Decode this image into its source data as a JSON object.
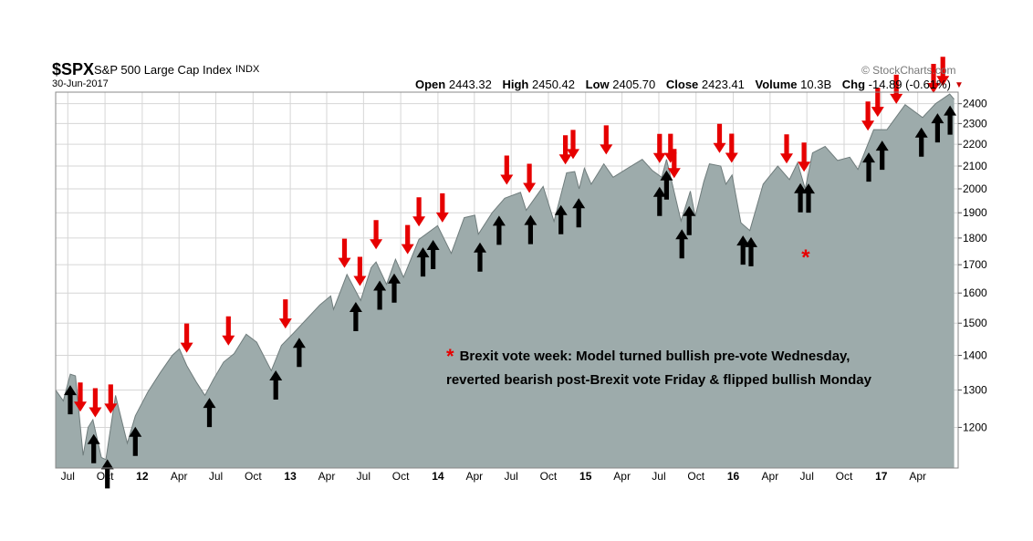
{
  "header": {
    "symbol": "$SPX",
    "name": "S&P 500 Large Cap Index",
    "exchange": "INDX",
    "date": "30-Jun-2017",
    "watermark": "© StockCharts.com",
    "open_label": "Open",
    "open": "2443.32",
    "high_label": "High",
    "high": "2450.42",
    "low_label": "Low",
    "low": "2405.70",
    "close_label": "Close",
    "close": "2423.41",
    "volume_label": "Volume",
    "volume": "10.3B",
    "chg_label": "Chg",
    "chg": "-14.89 (-0.61%)"
  },
  "annotation": {
    "marker": "*",
    "line1": "Brexit vote week: Model turned bullish pre-vote Wednesday,",
    "line2": "reverted bearish post-Brexit vote Friday & flipped bullish Monday"
  },
  "chart_data": {
    "type": "area",
    "y_scale": "log",
    "ylim": [
      1100,
      2460
    ],
    "xlim": [
      "2011-06-01",
      "2017-07-10"
    ],
    "grid": true,
    "colors": {
      "area": "#9dabab",
      "line": "#6f7c7c",
      "sell_arrow": "#e60000",
      "buy_arrow": "#000000",
      "brexit_marker": "#e60000"
    },
    "y_ticks": [
      1200,
      1300,
      1400,
      1500,
      1600,
      1700,
      1800,
      1900,
      2000,
      2100,
      2200,
      2300,
      2400
    ],
    "x_ticks": [
      {
        "label": "Jul",
        "date": "2011-07-01"
      },
      {
        "label": "Oct",
        "date": "2011-10-01"
      },
      {
        "label": "12",
        "date": "2012-01-01"
      },
      {
        "label": "Apr",
        "date": "2012-04-01"
      },
      {
        "label": "Jul",
        "date": "2012-07-01"
      },
      {
        "label": "Oct",
        "date": "2012-10-01"
      },
      {
        "label": "13",
        "date": "2013-01-01"
      },
      {
        "label": "Apr",
        "date": "2013-04-01"
      },
      {
        "label": "Jul",
        "date": "2013-07-01"
      },
      {
        "label": "Oct",
        "date": "2013-10-01"
      },
      {
        "label": "14",
        "date": "2014-01-01"
      },
      {
        "label": "Apr",
        "date": "2014-04-01"
      },
      {
        "label": "Jul",
        "date": "2014-07-01"
      },
      {
        "label": "Oct",
        "date": "2014-10-01"
      },
      {
        "label": "15",
        "date": "2015-01-01"
      },
      {
        "label": "Apr",
        "date": "2015-04-01"
      },
      {
        "label": "Jul",
        "date": "2015-07-01"
      },
      {
        "label": "Oct",
        "date": "2015-10-01"
      },
      {
        "label": "16",
        "date": "2016-01-01"
      },
      {
        "label": "Apr",
        "date": "2016-04-01"
      },
      {
        "label": "Jul",
        "date": "2016-07-01"
      },
      {
        "label": "Oct",
        "date": "2016-10-01"
      },
      {
        "label": "17",
        "date": "2017-01-01"
      },
      {
        "label": "Apr",
        "date": "2017-04-01"
      }
    ],
    "series": [
      {
        "x": [
          "2011-06-01",
          "2011-06-20",
          "2011-07-07",
          "2011-07-20",
          "2011-08-08",
          "2011-08-20",
          "2011-09-01",
          "2011-09-22",
          "2011-10-03",
          "2011-10-27",
          "2011-11-25",
          "2011-12-15",
          "2012-01-15",
          "2012-02-15",
          "2012-03-15",
          "2012-04-02",
          "2012-04-20",
          "2012-05-15",
          "2012-06-04",
          "2012-06-25",
          "2012-07-20",
          "2012-08-15",
          "2012-09-14",
          "2012-10-10",
          "2012-11-15",
          "2012-12-10",
          "2013-01-10",
          "2013-02-15",
          "2013-03-15",
          "2013-04-11",
          "2013-04-18",
          "2013-05-21",
          "2013-06-24",
          "2013-07-20",
          "2013-08-01",
          "2013-08-27",
          "2013-09-18",
          "2013-10-08",
          "2013-11-15",
          "2013-12-31",
          "2014-02-03",
          "2014-03-07",
          "2014-04-02",
          "2014-04-11",
          "2014-05-15",
          "2014-06-15",
          "2014-07-24",
          "2014-08-07",
          "2014-09-18",
          "2014-10-15",
          "2014-11-15",
          "2014-12-05",
          "2014-12-16",
          "2014-12-29",
          "2015-01-15",
          "2015-02-15",
          "2015-03-10",
          "2015-04-15",
          "2015-05-21",
          "2015-06-15",
          "2015-07-08",
          "2015-07-20",
          "2015-08-25",
          "2015-09-17",
          "2015-09-29",
          "2015-10-20",
          "2015-11-03",
          "2015-12-01",
          "2015-12-14",
          "2015-12-29",
          "2016-01-20",
          "2016-02-11",
          "2016-03-15",
          "2016-04-20",
          "2016-05-19",
          "2016-06-08",
          "2016-06-27",
          "2016-07-15",
          "2016-08-15",
          "2016-09-15",
          "2016-10-15",
          "2016-11-04",
          "2016-12-13",
          "2017-01-15",
          "2017-03-01",
          "2017-04-13",
          "2017-05-15",
          "2017-06-19",
          "2017-06-30"
        ],
        "y": [
          1300,
          1270,
          1345,
          1340,
          1130,
          1200,
          1220,
          1125,
          1120,
          1285,
          1160,
          1230,
          1295,
          1350,
          1400,
          1420,
          1370,
          1320,
          1285,
          1330,
          1380,
          1405,
          1465,
          1440,
          1355,
          1430,
          1470,
          1520,
          1560,
          1590,
          1545,
          1665,
          1575,
          1690,
          1710,
          1630,
          1720,
          1655,
          1795,
          1848,
          1742,
          1880,
          1890,
          1815,
          1900,
          1960,
          1985,
          1910,
          2010,
          1865,
          2070,
          2075,
          2000,
          2090,
          2020,
          2110,
          2050,
          2090,
          2130,
          2080,
          2050,
          2130,
          1867,
          1990,
          1885,
          2030,
          2110,
          2100,
          2020,
          2060,
          1860,
          1829,
          2020,
          2100,
          2040,
          2115,
          2000,
          2160,
          2190,
          2125,
          2140,
          2085,
          2270,
          2270,
          2395,
          2330,
          2400,
          2450,
          2423
        ]
      }
    ],
    "sell_signals": [
      "2011-08-01",
      "2011-09-07",
      "2011-10-15",
      "2012-04-20",
      "2012-08-01",
      "2012-12-20",
      "2013-05-15",
      "2013-06-22",
      "2013-08-01",
      "2013-10-18",
      "2013-11-15",
      "2014-01-12",
      "2014-06-20",
      "2014-08-15",
      "2014-11-12",
      "2014-12-01",
      "2015-02-21",
      "2015-07-03",
      "2015-07-30",
      "2015-08-08",
      "2015-11-28",
      "2015-12-28",
      "2016-05-12",
      "2016-06-24",
      "2016-11-29",
      "2016-12-23",
      "2017-02-07",
      "2017-05-10",
      "2017-06-02"
    ],
    "buy_signals": [
      "2011-07-07",
      "2011-09-03",
      "2011-10-07",
      "2011-12-15",
      "2012-06-15",
      "2012-11-26",
      "2013-01-23",
      "2013-06-12",
      "2013-08-10",
      "2013-09-15",
      "2013-11-25",
      "2013-12-20",
      "2014-04-15",
      "2014-06-01",
      "2014-08-18",
      "2014-11-01",
      "2014-12-15",
      "2015-07-03",
      "2015-07-20",
      "2015-08-27",
      "2015-09-14",
      "2016-01-25",
      "2016-02-14",
      "2016-06-15",
      "2016-07-05",
      "2016-12-01",
      "2017-01-03",
      "2017-04-10",
      "2017-05-20",
      "2017-06-20"
    ],
    "brexit_marker_date": "2016-07-01"
  }
}
